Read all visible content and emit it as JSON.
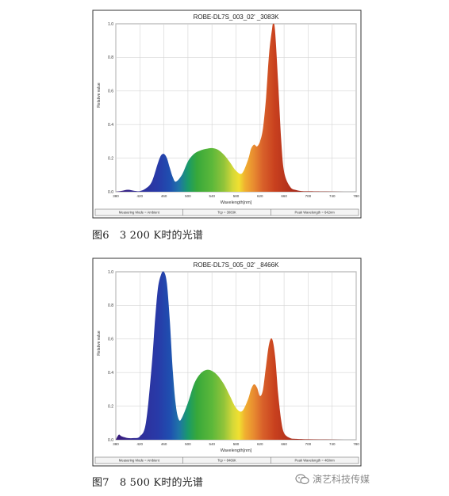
{
  "figures": [
    {
      "caption": "图6　3 200 K时的光谱",
      "chart_data": {
        "type": "area",
        "title": "ROBE-DL7S_003_02' _3083K",
        "xlabel": "Wavelength[nm]",
        "ylabel": "Relative value",
        "xlim": [
          380,
          780
        ],
        "ylim": [
          0,
          1.0
        ],
        "xticks": [
          "380",
          "420",
          "460",
          "500",
          "540",
          "580",
          "620",
          "660",
          "700",
          "740",
          "780"
        ],
        "yticks": [
          "0.0",
          "0.2",
          "0.4",
          "0.6",
          "0.8",
          "1.0"
        ],
        "grid": true,
        "footer": [
          "Measuring Mode = Ambient",
          "Tcp = 3083K",
          "Peak Wavelength = 642nm"
        ],
        "x": [
          380,
          390,
          400,
          410,
          420,
          430,
          440,
          450,
          455,
          460,
          465,
          470,
          475,
          480,
          490,
          500,
          510,
          520,
          530,
          540,
          550,
          560,
          570,
          580,
          590,
          600,
          605,
          610,
          615,
          620,
          625,
          630,
          635,
          640,
          642,
          645,
          650,
          655,
          660,
          670,
          680,
          690,
          700,
          720,
          740,
          760,
          780
        ],
        "values": [
          0.0,
          0.005,
          0.012,
          0.006,
          0.004,
          0.02,
          0.06,
          0.17,
          0.215,
          0.225,
          0.2,
          0.14,
          0.085,
          0.06,
          0.1,
          0.18,
          0.225,
          0.245,
          0.255,
          0.26,
          0.25,
          0.22,
          0.175,
          0.125,
          0.11,
          0.19,
          0.255,
          0.28,
          0.27,
          0.3,
          0.38,
          0.56,
          0.82,
          0.97,
          1.0,
          0.96,
          0.66,
          0.32,
          0.12,
          0.03,
          0.01,
          0.004,
          0.003,
          0.002,
          0.001,
          0.0,
          0.0
        ]
      }
    },
    {
      "caption": "图7　8 500 K时的光谱",
      "chart_data": {
        "type": "area",
        "title": "ROBE-DL7S_005_02' _8466K",
        "xlabel": "Wavelength[nm]",
        "ylabel": "Relative value",
        "xlim": [
          380,
          780
        ],
        "ylim": [
          0,
          1.0
        ],
        "xticks": [
          "380",
          "420",
          "460",
          "500",
          "540",
          "580",
          "620",
          "660",
          "700",
          "740",
          "780"
        ],
        "yticks": [
          "0.0",
          "0.2",
          "0.4",
          "0.6",
          "0.8",
          "1.0"
        ],
        "grid": true,
        "footer": [
          "Measuring Mode = Ambient",
          "Tcp = 8466K",
          "Peak Wavelength = 460nm"
        ],
        "x": [
          380,
          385,
          390,
          400,
          410,
          420,
          430,
          440,
          445,
          450,
          455,
          460,
          465,
          470,
          475,
          480,
          485,
          490,
          500,
          510,
          520,
          530,
          540,
          550,
          560,
          570,
          580,
          590,
          600,
          605,
          610,
          615,
          620,
          625,
          630,
          635,
          640,
          645,
          650,
          655,
          660,
          670,
          680,
          700,
          720,
          740,
          760,
          780
        ],
        "values": [
          0.0,
          0.03,
          0.02,
          0.01,
          0.01,
          0.02,
          0.1,
          0.45,
          0.7,
          0.9,
          0.98,
          1.0,
          0.93,
          0.7,
          0.4,
          0.2,
          0.12,
          0.13,
          0.22,
          0.33,
          0.39,
          0.415,
          0.41,
          0.38,
          0.33,
          0.26,
          0.19,
          0.17,
          0.24,
          0.3,
          0.33,
          0.31,
          0.26,
          0.3,
          0.44,
          0.57,
          0.6,
          0.5,
          0.28,
          0.12,
          0.04,
          0.01,
          0.005,
          0.003,
          0.002,
          0.001,
          0.0,
          0.0
        ]
      }
    }
  ],
  "watermark": {
    "icon": "wechat-icon",
    "text": "演艺科技传媒"
  }
}
